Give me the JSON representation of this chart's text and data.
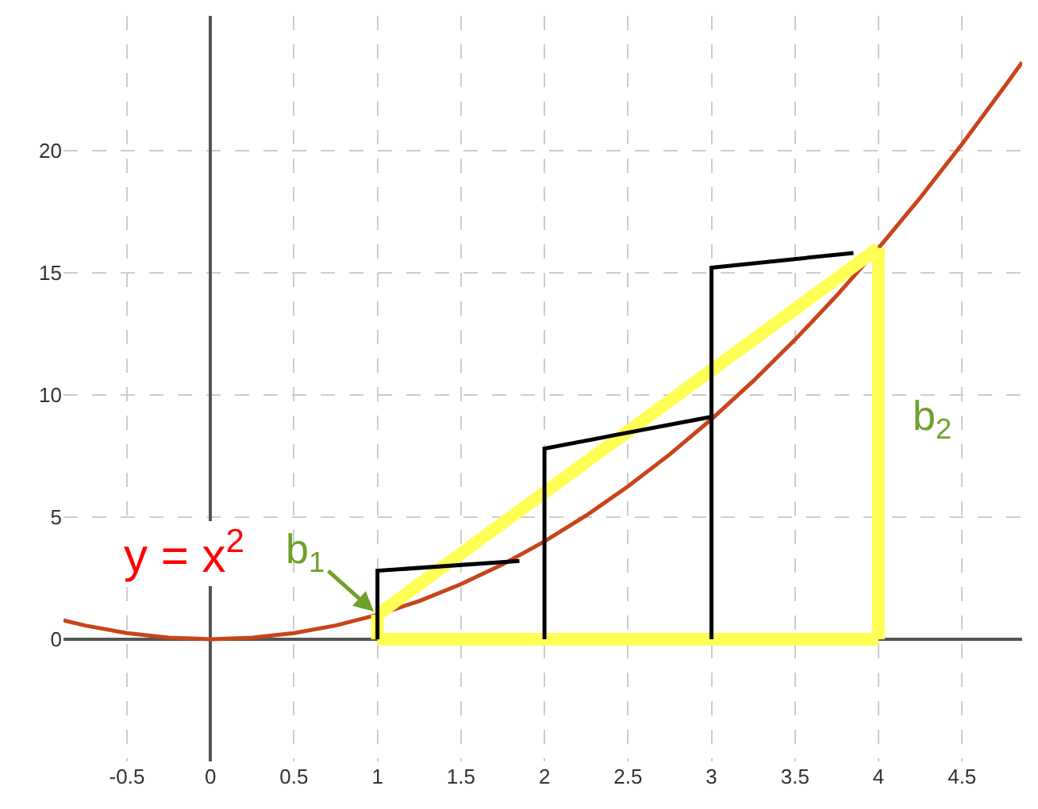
{
  "chart_data": {
    "type": "line",
    "xlim": [
      -0.88,
      4.86
    ],
    "ylim": [
      -5,
      25.5
    ],
    "xticks": [
      -0.5,
      0,
      0.5,
      1,
      1.5,
      2,
      2.5,
      3,
      3.5,
      4,
      4.5
    ],
    "yticks": [
      0,
      5,
      10,
      15,
      20
    ],
    "grid": true,
    "series": [
      {
        "color": "#c8441a",
        "x": [
          -0.88,
          -0.75,
          -0.5,
          -0.25,
          0,
          0.25,
          0.5,
          0.75,
          1,
          1.25,
          1.5,
          1.75,
          2,
          2.25,
          2.5,
          2.75,
          3,
          3.25,
          3.5,
          3.75,
          4,
          4.25,
          4.5,
          4.75,
          4.86
        ],
        "values": [
          0.77,
          0.56,
          0.25,
          0.06,
          0,
          0.06,
          0.25,
          0.56,
          1,
          1.56,
          2.25,
          3.06,
          4,
          5.06,
          6.25,
          7.56,
          9,
          10.56,
          12.25,
          14.06,
          16,
          18.06,
          20.25,
          22.56,
          23.6
        ]
      },
      {
        "color": "#ffff55",
        "x": [
          1,
          4
        ],
        "values": [
          1,
          16
        ]
      },
      {
        "color": "#ffff55",
        "x": [
          1,
          4
        ],
        "values": [
          0,
          0
        ]
      },
      {
        "color": "#ffff55",
        "x": [
          1,
          1,
          null,
          4,
          4
        ],
        "values": [
          0,
          1,
          null,
          0,
          16
        ]
      },
      {
        "color": "#000000",
        "x": [
          1,
          1,
          1.85,
          null,
          2,
          2,
          3,
          null,
          3,
          3,
          3.85
        ],
        "values": [
          0,
          2.8,
          3.2,
          null,
          0,
          7.8,
          9.1,
          null,
          0,
          15.2,
          15.8
        ]
      }
    ],
    "annotations": [
      "y = x$^{2}$",
      {
        "text": "b$_{1}$",
        "x": 1,
        "y": 1
      },
      "b$_{2}$"
    ]
  }
}
